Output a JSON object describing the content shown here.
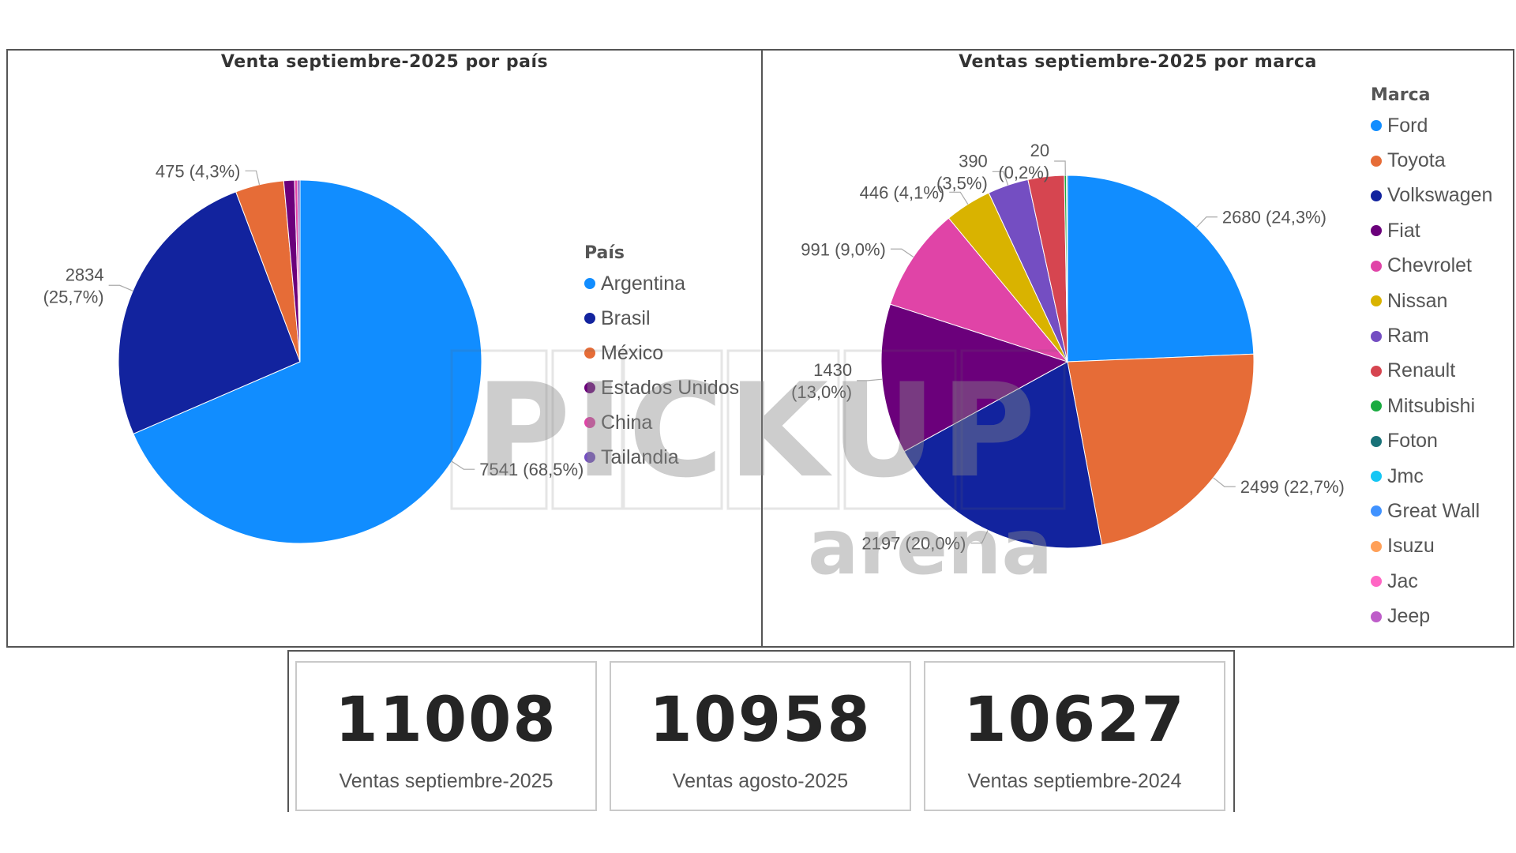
{
  "colors": {
    "Argentina": "#118DFF",
    "Brasil": "#12239E",
    "México": "#E66C37",
    "Estados Unidos": "#6B007B",
    "China": "#E044A7",
    "Tailandia": "#744EC2",
    "Ford": "#118DFF",
    "Toyota": "#E66C37",
    "Volkswagen": "#12239E",
    "Fiat": "#6B007B",
    "Chevrolet": "#E044A7",
    "Nissan": "#D9B300",
    "Ram": "#744EC2",
    "Renault": "#D64550",
    "Mitsubishi": "#1AAB40",
    "Foton": "#197278",
    "Jmc": "#15C6F4",
    "Great Wall": "#4092FF",
    "Isuzu": "#FFA058",
    "Jac": "#FF66C4",
    "Jeep": "#BE5DC9"
  },
  "watermark": {
    "line1": "PICKUP",
    "line2": "arena"
  },
  "chart_data": [
    {
      "type": "pie",
      "title": "Venta septiembre-2025 por país",
      "legend_title": "País",
      "legend_position": "right",
      "categories": [
        "Argentina",
        "Brasil",
        "México",
        "Estados Unidos",
        "China",
        "Tailandia"
      ],
      "values": [
        7541,
        2834,
        475,
        105,
        30,
        23
      ],
      "data_labels": {
        "Argentina": [
          "7541 (68,5%)"
        ],
        "Brasil": [
          "2834",
          "(25,7%)"
        ],
        "México": [
          "475 (4,3%)"
        ]
      }
    },
    {
      "type": "pie",
      "title": "Ventas septiembre-2025 por marca",
      "legend_title": "Marca",
      "legend_position": "right",
      "categories": [
        "Ford",
        "Toyota",
        "Volkswagen",
        "Fiat",
        "Chevrolet",
        "Nissan",
        "Ram",
        "Renault",
        "Mitsubishi",
        "Foton",
        "Jmc",
        "Great Wall",
        "Isuzu",
        "Jac",
        "Jeep"
      ],
      "values": [
        2680,
        2499,
        2197,
        1430,
        991,
        446,
        390,
        345,
        20,
        10,
        0,
        0,
        0,
        0,
        0
      ],
      "data_labels": {
        "Ford": [
          "2680 (24,3%)"
        ],
        "Toyota": [
          "2499 (22,7%)"
        ],
        "Volkswagen": [
          "2197 (20,0%)"
        ],
        "Fiat": [
          "1430",
          "(13,0%)"
        ],
        "Chevrolet": [
          "991 (9,0%)"
        ],
        "Nissan": [
          "446 (4,1%)"
        ],
        "Ram": [
          "390",
          "(3,5%)"
        ],
        "Mitsubishi": [
          "20",
          "(0,2%)"
        ]
      }
    }
  ],
  "kpis": [
    {
      "value": "11008",
      "label": "Ventas septiembre-2025"
    },
    {
      "value": "10958",
      "label": "Ventas agosto-2025"
    },
    {
      "value": "10627",
      "label": "Ventas septiembre-2024"
    }
  ]
}
